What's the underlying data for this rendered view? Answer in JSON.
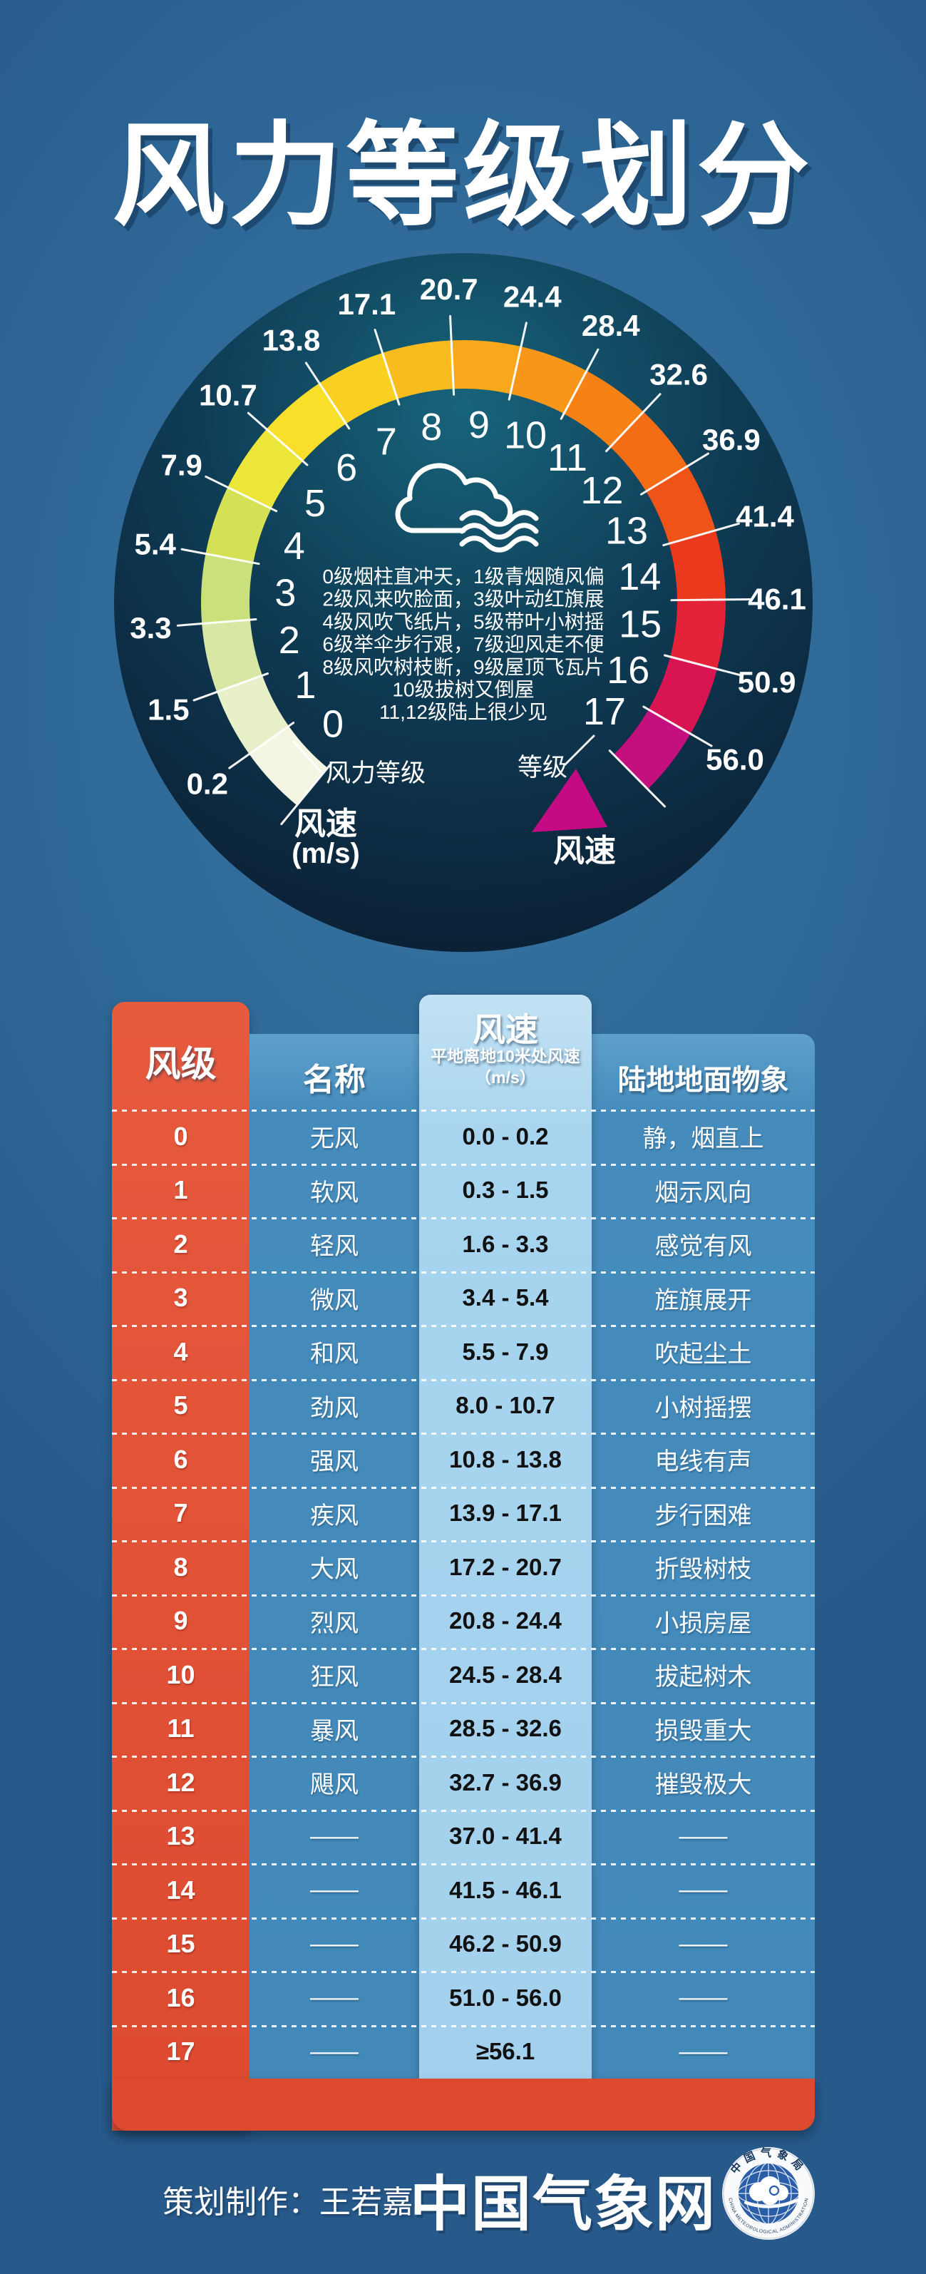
{
  "title": "风力等级划分",
  "colors": {
    "page_bg": "#2f6a99",
    "gauge_face_top": "#17647b",
    "gauge_face_bottom": "#0a1c30",
    "table_red": "#dd4a30",
    "table_blue": "#4289b9",
    "table_speed_col": "#a7d4ee",
    "arrow_magenta": "#c50b83"
  },
  "chart_data": {
    "type": "gauge",
    "title": "风力等级划分",
    "speed_boundaries": [
      "0.2",
      "1.5",
      "3.3",
      "5.4",
      "7.9",
      "10.7",
      "13.8",
      "17.1",
      "20.7",
      "24.4",
      "28.4",
      "32.6",
      "36.9",
      "41.4",
      "46.1",
      "50.9",
      "56.0"
    ],
    "levels": [
      "0",
      "1",
      "2",
      "3",
      "4",
      "5",
      "6",
      "7",
      "8",
      "9",
      "10",
      "11",
      "12",
      "13",
      "14",
      "15",
      "16",
      "17"
    ],
    "segment_colors": [
      "#f4f6e3",
      "#e8f0c9",
      "#d8e7a4",
      "#c9e07b",
      "#d5e154",
      "#ece53a",
      "#f8df29",
      "#f9cf22",
      "#f9bc1e",
      "#f8a91b",
      "#f79618",
      "#f68216",
      "#f46c14",
      "#f05317",
      "#eb391e",
      "#e42338",
      "#d81453",
      "#c40f7e"
    ],
    "rhyme_lines": [
      "0级烟柱直冲天，1级青烟随风偏",
      "2级风来吹脸面，3级叶动红旗展",
      "4级风吹飞纸片，5级带叶小树摇",
      "6级举伞步行艰，7级迎风走不便",
      "8级风吹树枝断，9级屋顶飞瓦片",
      "10级拔树又倒屋",
      "11,12级陆上很少见"
    ],
    "labels": {
      "level_scale": "风力等级",
      "grade": "等级",
      "speed": "风速",
      "speed_unit": "(m/s)",
      "speed_right": "风速"
    }
  },
  "table": {
    "headers": {
      "level": "风级",
      "name": "名称",
      "speed_title": "风速",
      "speed_sub": "平地离地10米处风速",
      "speed_unit": "（m/s）",
      "phenomena": "陆地地面物象"
    },
    "rows": [
      {
        "level": "0",
        "name": "无风",
        "speed": "0.0 - 0.2",
        "phenomena": "静，烟直上"
      },
      {
        "level": "1",
        "name": "软风",
        "speed": "0.3 - 1.5",
        "phenomena": "烟示风向"
      },
      {
        "level": "2",
        "name": "轻风",
        "speed": "1.6 - 3.3",
        "phenomena": "感觉有风"
      },
      {
        "level": "3",
        "name": "微风",
        "speed": "3.4 - 5.4",
        "phenomena": "旌旗展开"
      },
      {
        "level": "4",
        "name": "和风",
        "speed": "5.5 - 7.9",
        "phenomena": "吹起尘土"
      },
      {
        "level": "5",
        "name": "劲风",
        "speed": "8.0 - 10.7",
        "phenomena": "小树摇摆"
      },
      {
        "level": "6",
        "name": "强风",
        "speed": "10.8 - 13.8",
        "phenomena": "电线有声"
      },
      {
        "level": "7",
        "name": "疾风",
        "speed": "13.9 - 17.1",
        "phenomena": "步行困难"
      },
      {
        "level": "8",
        "name": "大风",
        "speed": "17.2 - 20.7",
        "phenomena": "折毁树枝"
      },
      {
        "level": "9",
        "name": "烈风",
        "speed": "20.8 - 24.4",
        "phenomena": "小损房屋"
      },
      {
        "level": "10",
        "name": "狂风",
        "speed": "24.5 - 28.4",
        "phenomena": "拔起树木"
      },
      {
        "level": "11",
        "name": "暴风",
        "speed": "28.5 - 32.6",
        "phenomena": "损毁重大"
      },
      {
        "level": "12",
        "name": "飓风",
        "speed": "32.7 - 36.9",
        "phenomena": "摧毁极大"
      },
      {
        "level": "13",
        "name": "——",
        "speed": "37.0 - 41.4",
        "phenomena": "——"
      },
      {
        "level": "14",
        "name": "——",
        "speed": "41.5 - 46.1",
        "phenomena": "——"
      },
      {
        "level": "15",
        "name": "——",
        "speed": "46.2 - 50.9",
        "phenomena": "——"
      },
      {
        "level": "16",
        "name": "——",
        "speed": "51.0 - 56.0",
        "phenomena": "——"
      },
      {
        "level": "17",
        "name": "——",
        "speed": "≥56.1",
        "phenomena": "——"
      }
    ]
  },
  "footer": {
    "credit": "策划制作：王若嘉",
    "site": "中国气象网",
    "logo_cn": "中国气象局",
    "logo_en": "CHINA METEOROLOGICAL ADMINISTRATION"
  }
}
